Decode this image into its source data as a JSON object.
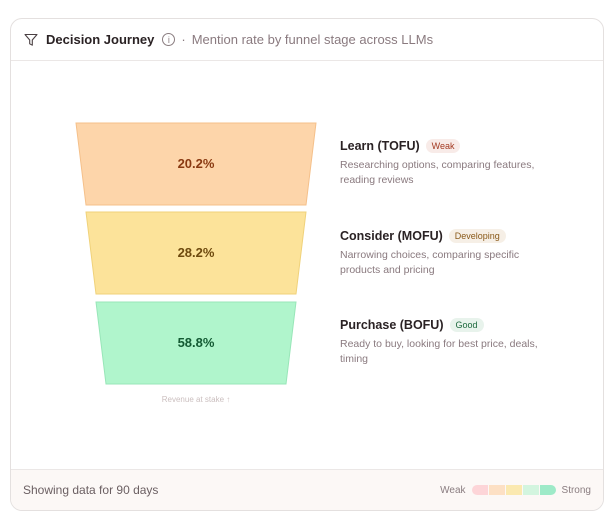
{
  "header": {
    "title": "Decision Journey",
    "separator": "·",
    "subtitle": "Mention rate by funnel stage across LLMs",
    "info_icon": "i"
  },
  "stages": [
    {
      "name": "Learn (TOFU)",
      "badge": "Weak",
      "value": "20.2%",
      "description": "Researching options, comparing features, reading reviews",
      "fill": "#fdd5aa",
      "text_color": "#8a3a12",
      "badge_bg": "#f8ebe8",
      "badge_color": "#a33a22"
    },
    {
      "name": "Consider (MOFU)",
      "badge": "Developing",
      "value": "28.2%",
      "description": "Narrowing choices, comparing specific products and pricing",
      "fill": "#fce39a",
      "text_color": "#6e4a0e",
      "badge_bg": "#f6efe6",
      "badge_color": "#8a5a1a"
    },
    {
      "name": "Purchase (BOFU)",
      "badge": "Good",
      "value": "58.8%",
      "description": "Ready to buy, looking for best price, deals, timing",
      "fill": "#b0f5cc",
      "text_color": "#135a33",
      "badge_bg": "#e8f3ec",
      "badge_color": "#1d6a3e"
    }
  ],
  "revenue_label": "Revenue at stake ↑",
  "footer": {
    "text": "Showing data for 90 days",
    "legend_weak": "Weak",
    "legend_strong": "Strong",
    "scale_colors": [
      "#fdd5d8",
      "#fde0c4",
      "#fbe9b0",
      "#d3f5df",
      "#9eeac8"
    ]
  }
}
